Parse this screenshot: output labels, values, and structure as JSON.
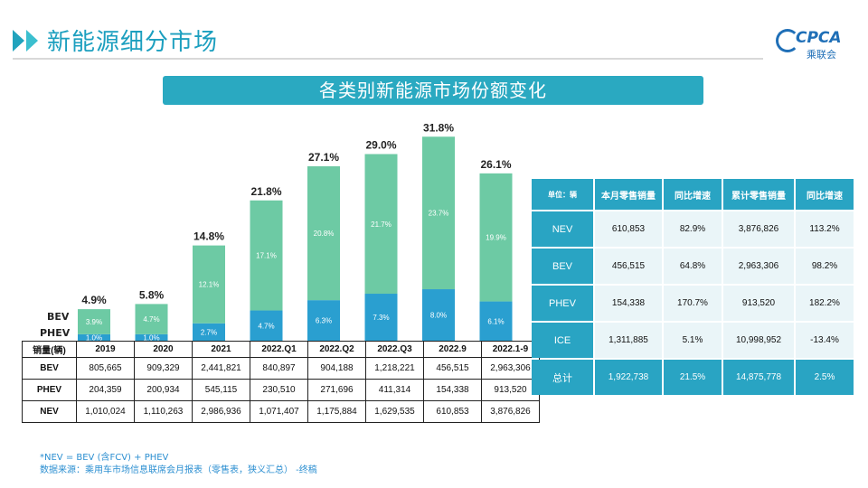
{
  "header": {
    "title": "新能源细分市场"
  },
  "logo": {
    "main": "CPCA",
    "sub": "乘联会"
  },
  "banner": {
    "title": "各类别新能源市场份额变化"
  },
  "legend": {
    "bev": "BEV",
    "phev": "PHEV"
  },
  "colors": {
    "bev": "#6dcaa4",
    "phev": "#2a9fd0",
    "accent": "#2aa9c1"
  },
  "chart_data": {
    "type": "bar",
    "stacked": true,
    "title": "各类别新能源市场份额变化",
    "categories": [
      "2019",
      "2020",
      "2021",
      "2022.Q1",
      "2022.Q2",
      "2022.Q3",
      "2022.9",
      "2022.1-9"
    ],
    "series": [
      {
        "name": "PHEV",
        "values": [
          1.0,
          1.0,
          2.7,
          4.7,
          6.3,
          7.3,
          8.0,
          6.1
        ],
        "labels": [
          "1.0%",
          "1.0%",
          "2.7%",
          "4.7%",
          "6.3%",
          "7.3%",
          "8.0%",
          "6.1%"
        ]
      },
      {
        "name": "BEV",
        "values": [
          3.9,
          4.7,
          12.1,
          17.1,
          20.8,
          21.7,
          23.7,
          19.9
        ],
        "labels": [
          "3.9%",
          "4.7%",
          "12.1%",
          "17.1%",
          "20.8%",
          "21.7%",
          "23.7%",
          "19.9%"
        ]
      }
    ],
    "totals": [
      4.9,
      5.8,
      14.8,
      21.8,
      27.1,
      29.0,
      31.8,
      26.1
    ],
    "total_labels": [
      "4.9%",
      "5.8%",
      "14.8%",
      "21.8%",
      "27.1%",
      "29.0%",
      "31.8%",
      "26.1%"
    ],
    "ylim": [
      0,
      33
    ]
  },
  "table": {
    "header_label": "销量(辆)",
    "columns": [
      "2019",
      "2020",
      "2021",
      "2022.Q1",
      "2022.Q2",
      "2022.Q3",
      "2022.9",
      "2022.1-9"
    ],
    "rows": [
      {
        "label": "BEV",
        "cells": [
          "805,665",
          "909,329",
          "2,441,821",
          "840,897",
          "904,188",
          "1,218,221",
          "456,515",
          "2,963,306"
        ]
      },
      {
        "label": "PHEV",
        "cells": [
          "204,359",
          "200,934",
          "545,115",
          "230,510",
          "271,696",
          "411,314",
          "154,338",
          "913,520"
        ]
      },
      {
        "label": "NEV",
        "cells": [
          "1,010,024",
          "1,110,263",
          "2,986,936",
          "1,071,407",
          "1,175,884",
          "1,629,535",
          "610,853",
          "3,876,826"
        ]
      }
    ]
  },
  "summary": {
    "headers": [
      "单位：辆",
      "本月零售销量",
      "同比增速",
      "累计零售销量",
      "同比增速"
    ],
    "rows": [
      {
        "label": "NEV",
        "cells": [
          "610,853",
          "82.9%",
          "3,876,826",
          "113.2%"
        ]
      },
      {
        "label": "BEV",
        "cells": [
          "456,515",
          "64.8%",
          "2,963,306",
          "98.2%"
        ]
      },
      {
        "label": "PHEV",
        "cells": [
          "154,338",
          "170.7%",
          "913,520",
          "182.2%"
        ]
      },
      {
        "label": "ICE",
        "cells": [
          "1,311,885",
          "5.1%",
          "10,998,952",
          "-13.4%"
        ]
      },
      {
        "label": "总计",
        "cells": [
          "1,922,738",
          "21.5%",
          "14,875,778",
          "2.5%"
        ]
      }
    ]
  },
  "footnotes": {
    "line1": "*NEV = BEV (含FCV) + PHEV",
    "line2": "数据来源：乘用车市场信息联席会月报表（零售表，狭义汇总） -终稿"
  }
}
